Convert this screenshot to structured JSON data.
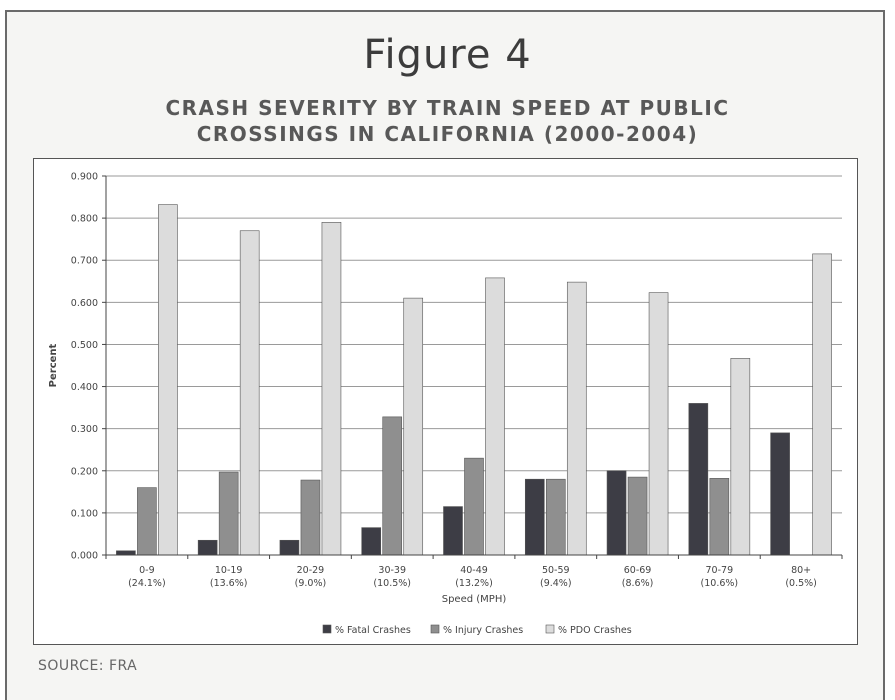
{
  "figure": {
    "title": "Figure 4",
    "subtitle_line1": "CRASH SEVERITY BY TRAIN SPEED AT PUBLIC",
    "subtitle_line2": "CROSSINGS IN CALIFORNIA (2000-2004)",
    "source": "SOURCE: FRA"
  },
  "chart_data": {
    "type": "bar",
    "categories": [
      "0-9",
      "10-19",
      "20-29",
      "30-39",
      "40-49",
      "50-59",
      "60-69",
      "70-79",
      "80+"
    ],
    "category_sublabels": [
      "(24.1%)",
      "(13.6%)",
      "(9.0%)",
      "(10.5%)",
      "(13.2%)",
      "(9.4%)",
      "(8.6%)",
      "(10.6%)",
      "(0.5%)"
    ],
    "series": [
      {
        "name": "% Fatal Crashes",
        "color": "#3d3d45",
        "values": [
          0.01,
          0.035,
          0.035,
          0.065,
          0.115,
          0.18,
          0.2,
          0.36,
          0.29
        ]
      },
      {
        "name": "% Injury Crashes",
        "color": "#8f8f8f",
        "values": [
          0.16,
          0.197,
          0.178,
          0.328,
          0.23,
          0.18,
          0.185,
          0.182,
          0.0
        ]
      },
      {
        "name": "% PDO Crashes",
        "color": "#dcdcdc",
        "values": [
          0.832,
          0.77,
          0.79,
          0.61,
          0.658,
          0.648,
          0.623,
          0.467,
          0.715
        ]
      }
    ],
    "xlabel": "Speed (MPH)",
    "ylabel": "Percent",
    "ylim": [
      0,
      0.9
    ],
    "yticks": [
      "0.000",
      "0.100",
      "0.200",
      "0.300",
      "0.400",
      "0.500",
      "0.600",
      "0.700",
      "0.800",
      "0.900"
    ],
    "grid": true,
    "legend_position": "bottom"
  }
}
